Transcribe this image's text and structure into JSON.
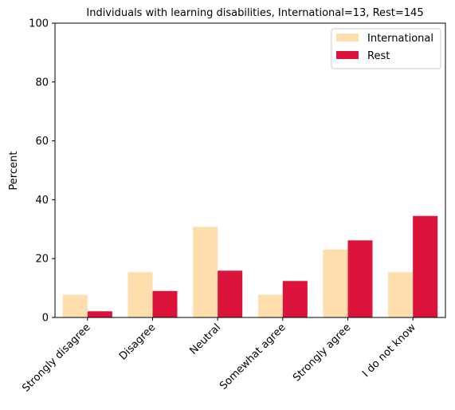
{
  "chart_data": {
    "type": "bar",
    "title": "Individuals with learning disabilities, International=13, Rest=145",
    "xlabel": "",
    "ylabel": "Percent",
    "ylim": [
      0,
      100
    ],
    "yticks": [
      0,
      20,
      40,
      60,
      80,
      100
    ],
    "categories": [
      "Strongly disagree",
      "Disagree",
      "Neutral",
      "Somewhat agree",
      "Strongly agree",
      "I do not know"
    ],
    "series": [
      {
        "name": "International",
        "color": "#ffdead",
        "values": [
          7.7,
          15.4,
          30.8,
          7.7,
          23.1,
          15.4
        ]
      },
      {
        "name": "Rest",
        "color": "#dc143c",
        "values": [
          2.1,
          9.0,
          15.9,
          12.4,
          26.2,
          34.5
        ]
      }
    ],
    "legend": "top-right",
    "grid": false
  }
}
